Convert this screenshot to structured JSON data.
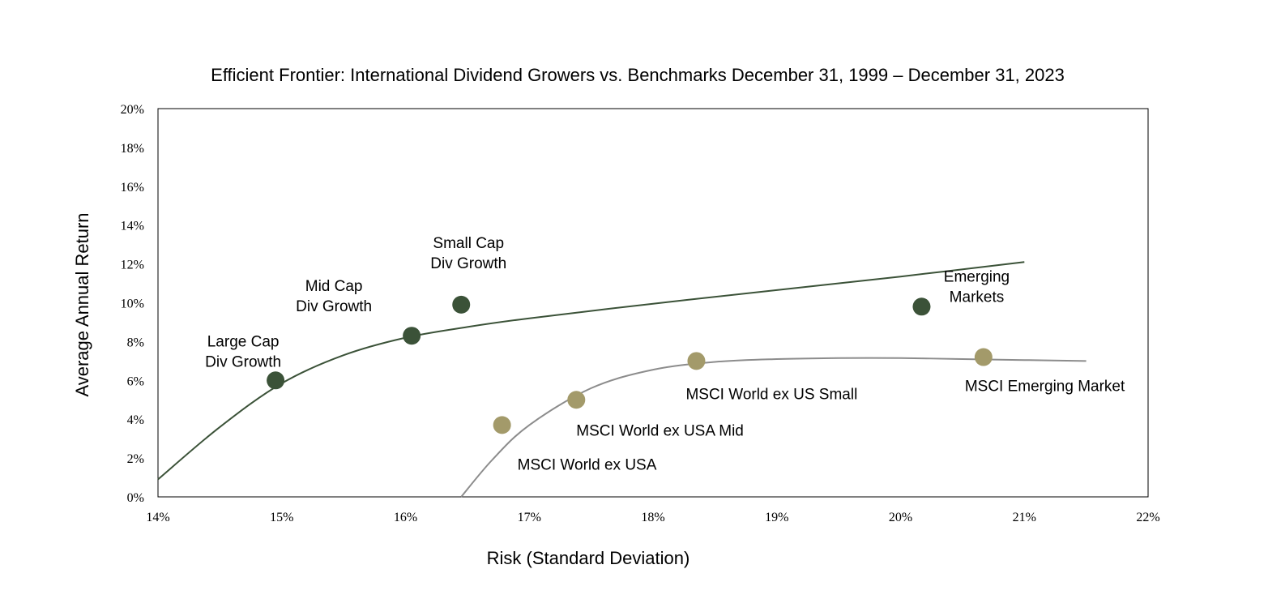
{
  "chart_data": {
    "type": "scatter",
    "title": "Efficient Frontier: International Dividend Growers vs. Benchmarks December 31, 1999 – December 31, 2023",
    "xlabel": "Risk (Standard Deviation)",
    "ylabel": "Average Annual Return",
    "xlim": [
      14,
      22
    ],
    "ylim": [
      0,
      20
    ],
    "x_ticks": [
      "14%",
      "15%",
      "16%",
      "17%",
      "18%",
      "19%",
      "20%",
      "21%",
      "22%"
    ],
    "y_ticks": [
      "0%",
      "2%",
      "4%",
      "6%",
      "8%",
      "10%",
      "12%",
      "14%",
      "16%",
      "18%",
      "20%"
    ],
    "grid": false,
    "legend": "none",
    "colors": {
      "dividend_growers": "#3b5238",
      "benchmarks": "#a39a6a",
      "dividend_curve": "#3b5238",
      "benchmark_curve": "#8c8c8c"
    },
    "series": [
      {
        "points": [
          {
            "label_lines": [
              "Large Cap",
              "Div Growth"
            ],
            "x": 14.95,
            "y": 6.0
          },
          {
            "label_lines": [
              "Mid Cap",
              "Div Growth"
            ],
            "x": 16.05,
            "y": 8.3
          },
          {
            "label_lines": [
              "Small Cap",
              "Div Growth"
            ],
            "x": 16.45,
            "y": 9.9
          },
          {
            "label_lines": [
              "Emerging",
              "Markets"
            ],
            "x": 20.17,
            "y": 9.8
          }
        ],
        "curve": [
          [
            14.0,
            0.9
          ],
          [
            14.5,
            3.6
          ],
          [
            15.0,
            5.85
          ],
          [
            15.5,
            7.3
          ],
          [
            16.0,
            8.2
          ],
          [
            16.5,
            8.75
          ],
          [
            17.0,
            9.2
          ],
          [
            18.0,
            9.95
          ],
          [
            19.0,
            10.65
          ],
          [
            20.0,
            11.35
          ],
          [
            21.0,
            12.1
          ]
        ]
      },
      {
        "points": [
          {
            "label_lines": [
              "MSCI World ex USA"
            ],
            "x": 16.78,
            "y": 3.7
          },
          {
            "label_lines": [
              "MSCI World ex USA Mid"
            ],
            "x": 17.38,
            "y": 5.0
          },
          {
            "label_lines": [
              "MSCI World ex US Small"
            ],
            "x": 18.35,
            "y": 7.0
          },
          {
            "label_lines": [
              "MSCI Emerging  Market"
            ],
            "x": 20.67,
            "y": 7.2
          }
        ],
        "curve": [
          [
            16.45,
            0.0
          ],
          [
            16.7,
            1.9
          ],
          [
            17.0,
            3.7
          ],
          [
            17.5,
            5.6
          ],
          [
            18.0,
            6.55
          ],
          [
            18.5,
            6.95
          ],
          [
            19.0,
            7.1
          ],
          [
            19.5,
            7.15
          ],
          [
            20.0,
            7.15
          ],
          [
            20.5,
            7.1
          ],
          [
            21.0,
            7.05
          ],
          [
            21.5,
            7.0
          ]
        ]
      }
    ]
  }
}
